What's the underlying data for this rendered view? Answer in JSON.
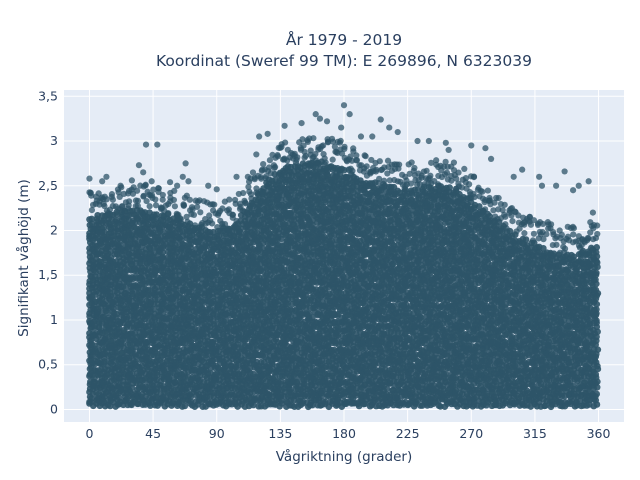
{
  "chart_data": {
    "type": "scatter",
    "title_lines": [
      "År 1979 - 2019",
      "Koordinat (Sweref 99 TM): E 269896, N 6323039"
    ],
    "xlabel": "Vågriktning (grader)",
    "ylabel": "Signifikant våghöjd (m)",
    "xlim": [
      -18,
      378
    ],
    "ylim": [
      -0.14,
      3.57
    ],
    "x_ticks": [
      0,
      45,
      90,
      135,
      180,
      225,
      270,
      315,
      360
    ],
    "y_ticks": [
      0,
      0.5,
      1,
      1.5,
      2,
      2.5,
      3,
      3.5
    ],
    "y_tick_labels": [
      "0",
      "0,5",
      "1",
      "1,5",
      "2",
      "2,5",
      "3",
      "3,5"
    ],
    "grid": true,
    "marker_color": "#2e5468",
    "plot_background": "#e5ecf6",
    "envelope": {
      "direction": [
        0,
        15,
        30,
        45,
        60,
        75,
        90,
        105,
        120,
        135,
        150,
        165,
        180,
        195,
        210,
        225,
        240,
        255,
        270,
        285,
        300,
        315,
        330,
        345,
        360
      ],
      "upper_height": [
        2.15,
        2.2,
        2.25,
        2.2,
        2.15,
        2.05,
        2.0,
        2.1,
        2.45,
        2.7,
        2.75,
        2.75,
        2.7,
        2.55,
        2.5,
        2.45,
        2.5,
        2.5,
        2.35,
        2.15,
        1.95,
        1.85,
        1.75,
        1.75,
        1.85
      ]
    },
    "outliers": [
      [
        0,
        2.58
      ],
      [
        9,
        2.55
      ],
      [
        12,
        2.6
      ],
      [
        22,
        2.5
      ],
      [
        30,
        2.56
      ],
      [
        35,
        2.73
      ],
      [
        38,
        2.65
      ],
      [
        40,
        2.96
      ],
      [
        44,
        2.55
      ],
      [
        48,
        2.96
      ],
      [
        57,
        2.54
      ],
      [
        62,
        2.5
      ],
      [
        66,
        2.6
      ],
      [
        68,
        2.75
      ],
      [
        70,
        2.55
      ],
      [
        84,
        2.5
      ],
      [
        90,
        2.46
      ],
      [
        104,
        2.6
      ],
      [
        112,
        2.6
      ],
      [
        118,
        2.85
      ],
      [
        120,
        3.05
      ],
      [
        126,
        3.08
      ],
      [
        138,
        3.17
      ],
      [
        150,
        3.2
      ],
      [
        160,
        3.3
      ],
      [
        163,
        3.25
      ],
      [
        168,
        3.22
      ],
      [
        178,
        3.15
      ],
      [
        180,
        3.4
      ],
      [
        184,
        3.3
      ],
      [
        192,
        3.05
      ],
      [
        200,
        3.05
      ],
      [
        206,
        3.24
      ],
      [
        212,
        3.15
      ],
      [
        218,
        3.1
      ],
      [
        232,
        3.0
      ],
      [
        240,
        3.0
      ],
      [
        252,
        2.98
      ],
      [
        254,
        2.9
      ],
      [
        270,
        2.95
      ],
      [
        280,
        2.92
      ],
      [
        284,
        2.8
      ],
      [
        300,
        2.6
      ],
      [
        306,
        2.68
      ],
      [
        318,
        2.6
      ],
      [
        320,
        2.5
      ],
      [
        330,
        2.5
      ],
      [
        336,
        2.66
      ],
      [
        342,
        2.45
      ],
      [
        346,
        2.5
      ],
      [
        353,
        2.55
      ],
      [
        356,
        2.2
      ]
    ]
  }
}
